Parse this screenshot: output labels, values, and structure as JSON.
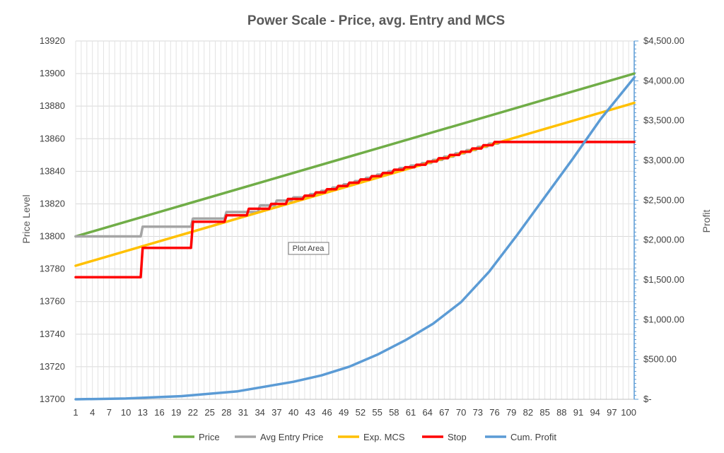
{
  "chart_data": {
    "type": "line",
    "title": "Power Scale - Price, avg. Entry and MCS",
    "ylabel": "Price Level",
    "y2label": "Profit",
    "ylim": [
      13700,
      13920
    ],
    "y_ticks": [
      13700,
      13720,
      13740,
      13760,
      13780,
      13800,
      13820,
      13840,
      13860,
      13880,
      13900,
      13920
    ],
    "y2lim": [
      0,
      4500
    ],
    "y2_ticks": [
      "$-",
      "$500.00",
      "$1,000.00",
      "$1,500.00",
      "$2,000.00",
      "$2,500.00",
      "$3,000.00",
      "$3,500.00",
      "$4,000.00",
      "$4,500.00"
    ],
    "x": [
      1,
      101
    ],
    "x_ticks": [
      1,
      4,
      7,
      10,
      13,
      16,
      19,
      22,
      25,
      28,
      31,
      34,
      37,
      40,
      43,
      46,
      49,
      52,
      55,
      58,
      61,
      64,
      67,
      70,
      73,
      76,
      79,
      82,
      85,
      88,
      91,
      94,
      97,
      100
    ],
    "grid": true,
    "legend_position": "bottom",
    "tooltip": "Plot Area",
    "series": [
      {
        "name": "Price",
        "color": "#70ad47",
        "axis": "left",
        "kind": "linear",
        "start": 13800,
        "end": 13900
      },
      {
        "name": "Avg Entry Price",
        "color": "#a5a5a5",
        "axis": "left",
        "kind": "step",
        "steps": [
          [
            1,
            13800
          ],
          [
            13,
            13806
          ],
          [
            22,
            13811
          ],
          [
            28,
            13815
          ],
          [
            34,
            13819
          ],
          [
            37,
            13822
          ],
          [
            40,
            13824
          ],
          [
            43,
            13826
          ],
          [
            45,
            13828
          ],
          [
            47,
            13830
          ],
          [
            49,
            13832
          ],
          [
            51,
            13834
          ],
          [
            53,
            13836
          ],
          [
            55,
            13838
          ],
          [
            57,
            13840
          ],
          [
            59,
            13842
          ],
          [
            61,
            13843.5
          ],
          [
            63,
            13845
          ],
          [
            65,
            13847
          ],
          [
            67,
            13849
          ],
          [
            69,
            13851
          ],
          [
            71,
            13853
          ],
          [
            73,
            13855
          ],
          [
            75,
            13857
          ],
          [
            77,
            13858
          ]
        ]
      },
      {
        "name": "Exp. MCS",
        "color": "#ffc000",
        "axis": "left",
        "kind": "linear",
        "start": 13782,
        "end": 13882
      },
      {
        "name": "Stop",
        "color": "#ff0000",
        "axis": "left",
        "kind": "step",
        "steps": [
          [
            1,
            13775
          ],
          [
            13,
            13793
          ],
          [
            22,
            13809
          ],
          [
            28,
            13813
          ],
          [
            32,
            13817
          ],
          [
            36,
            13820
          ],
          [
            39,
            13823
          ],
          [
            42,
            13825
          ],
          [
            44,
            13827
          ],
          [
            46,
            13829
          ],
          [
            48,
            13831
          ],
          [
            50,
            13833
          ],
          [
            52,
            13835
          ],
          [
            54,
            13837
          ],
          [
            56,
            13839
          ],
          [
            58,
            13841
          ],
          [
            60,
            13842.5
          ],
          [
            62,
            13844
          ],
          [
            64,
            13846
          ],
          [
            66,
            13848
          ],
          [
            68,
            13850
          ],
          [
            70,
            13852
          ],
          [
            72,
            13854
          ],
          [
            74,
            13856
          ],
          [
            76,
            13858
          ]
        ]
      },
      {
        "name": "Cum. Profit",
        "color": "#5b9bd5",
        "axis": "right",
        "kind": "points",
        "points": [
          [
            1,
            0
          ],
          [
            10,
            10
          ],
          [
            20,
            40
          ],
          [
            30,
            100
          ],
          [
            40,
            220
          ],
          [
            45,
            300
          ],
          [
            50,
            410
          ],
          [
            55,
            560
          ],
          [
            60,
            740
          ],
          [
            65,
            950
          ],
          [
            70,
            1220
          ],
          [
            75,
            1600
          ],
          [
            80,
            2060
          ],
          [
            85,
            2540
          ],
          [
            90,
            3020
          ],
          [
            95,
            3520
          ],
          [
            101,
            4040
          ]
        ]
      }
    ]
  }
}
